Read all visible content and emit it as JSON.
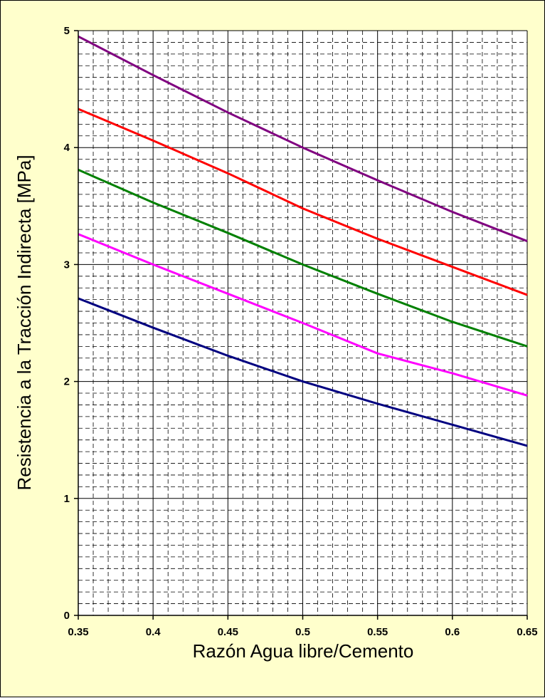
{
  "chart_data": {
    "type": "line",
    "title": "",
    "xlabel": "Razón Agua libre/Cemento",
    "ylabel": "Resistencia a la Tracción Indirecta [MPa]",
    "xlim": [
      0.35,
      0.65
    ],
    "ylim": [
      0,
      5
    ],
    "x_ticks": [
      "0.35",
      "0.4",
      "0.45",
      "0.5",
      "0.55",
      "0.6",
      "0.65"
    ],
    "y_ticks": [
      "0",
      "1",
      "2",
      "3",
      "4",
      "5"
    ],
    "grid": {
      "major": true,
      "minor": true,
      "minor_style": "dashed"
    },
    "legend": "none",
    "colors": {
      "background": "#ffffcc",
      "plot_area": "#ffffff",
      "major_grid": "#000000",
      "minor_grid": "#000000"
    },
    "series": [
      {
        "color": "#800080",
        "x": [
          0.35,
          0.4,
          0.45,
          0.5,
          0.55,
          0.6,
          0.65
        ],
        "y": [
          4.95,
          4.62,
          4.3,
          4.0,
          3.72,
          3.45,
          3.2
        ]
      },
      {
        "color": "#ff0000",
        "x": [
          0.35,
          0.4,
          0.45,
          0.5,
          0.55,
          0.6,
          0.65
        ],
        "y": [
          4.33,
          4.06,
          3.78,
          3.48,
          3.22,
          2.98,
          2.74
        ]
      },
      {
        "color": "#008000",
        "x": [
          0.35,
          0.4,
          0.45,
          0.5,
          0.55,
          0.6,
          0.65
        ],
        "y": [
          3.81,
          3.53,
          3.27,
          3.0,
          2.75,
          2.51,
          2.3
        ]
      },
      {
        "color": "#ff00ff",
        "x": [
          0.35,
          0.4,
          0.45,
          0.5,
          0.55,
          0.6,
          0.65
        ],
        "y": [
          3.26,
          3.0,
          2.75,
          2.5,
          2.24,
          2.07,
          1.88
        ]
      },
      {
        "color": "#000080",
        "x": [
          0.35,
          0.4,
          0.45,
          0.5,
          0.55,
          0.6,
          0.65
        ],
        "y": [
          2.71,
          2.46,
          2.22,
          2.0,
          1.81,
          1.63,
          1.45
        ]
      }
    ]
  }
}
